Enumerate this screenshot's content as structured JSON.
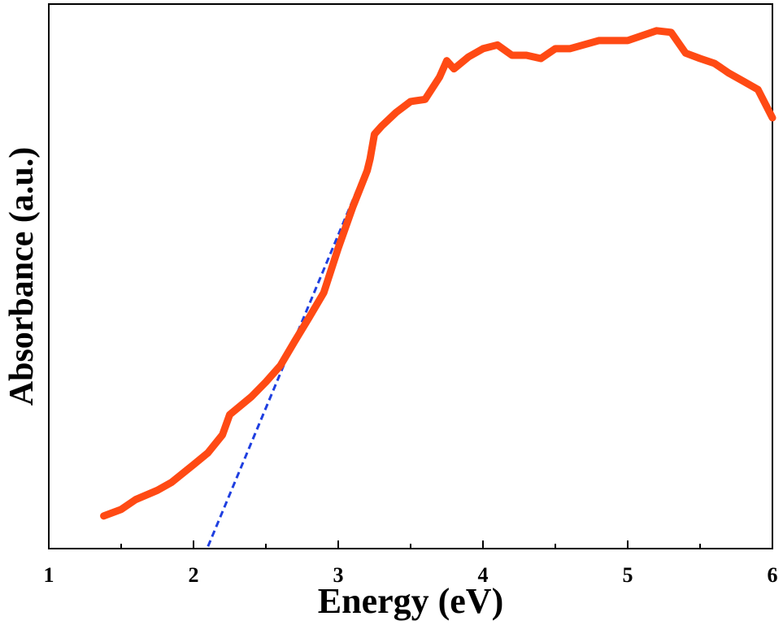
{
  "chart_data": {
    "type": "line",
    "xlabel": "Energy (eV)",
    "ylabel": "Absorbance (a.u.)",
    "x": [
      1.38,
      1.5,
      1.6,
      1.75,
      1.85,
      2.0,
      2.1,
      2.2,
      2.25,
      2.4,
      2.5,
      2.6,
      2.7,
      2.8,
      2.9,
      3.0,
      3.1,
      3.2,
      3.22,
      3.25,
      3.3,
      3.4,
      3.5,
      3.6,
      3.7,
      3.75,
      3.8,
      3.9,
      4.0,
      4.1,
      4.2,
      4.3,
      4.4,
      4.5,
      4.6,
      4.8,
      5.0,
      5.2,
      5.3,
      5.4,
      5.5,
      5.6,
      5.7,
      5.8,
      5.9,
      6.0
    ],
    "values": [
      0.06,
      0.072,
      0.09,
      0.107,
      0.122,
      0.154,
      0.176,
      0.209,
      0.246,
      0.279,
      0.306,
      0.336,
      0.381,
      0.425,
      0.47,
      0.552,
      0.627,
      0.694,
      0.716,
      0.761,
      0.776,
      0.801,
      0.821,
      0.825,
      0.866,
      0.896,
      0.881,
      0.903,
      0.918,
      0.925,
      0.906,
      0.906,
      0.9,
      0.918,
      0.918,
      0.933,
      0.933,
      0.951,
      0.948,
      0.91,
      0.9,
      0.891,
      0.873,
      0.858,
      0.843,
      0.791
    ],
    "color": "#ff4a14",
    "fit_line": {
      "x": [
        2.1,
        3.22
      ],
      "values": [
        0.004,
        0.716
      ],
      "color": "#1f3fe0"
    },
    "xlim": [
      1,
      6
    ],
    "ylim": [
      0,
      1
    ],
    "xticks": [
      1,
      2,
      3,
      4,
      5,
      6
    ],
    "xminorticks": [
      1.5,
      2.5,
      3.5,
      4.5,
      5.5
    ]
  }
}
